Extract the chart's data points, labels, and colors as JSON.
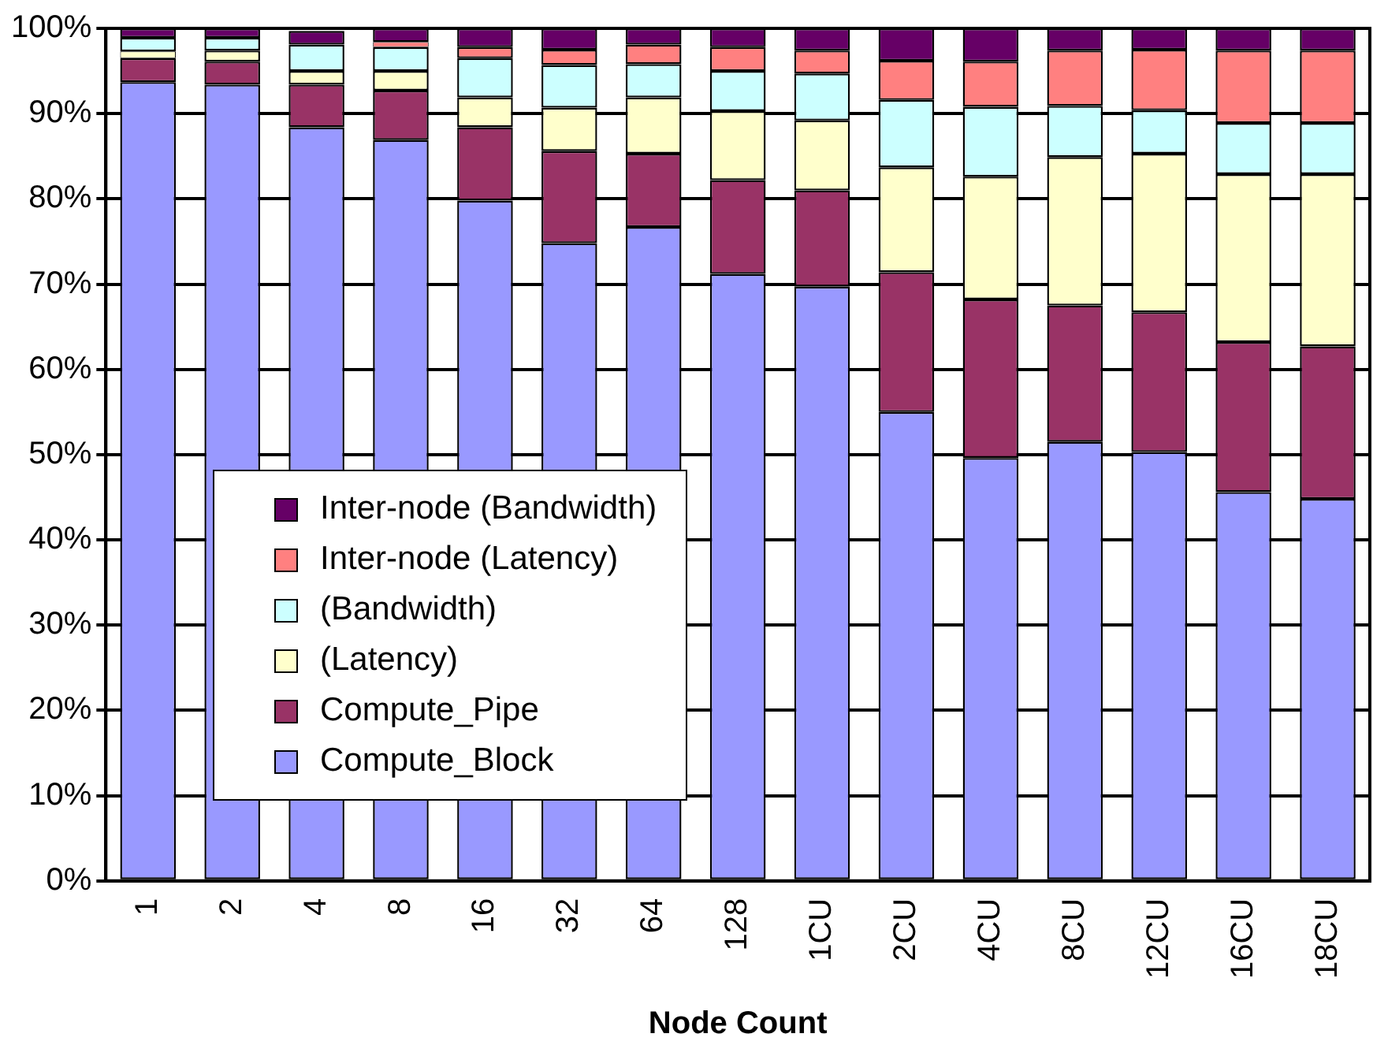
{
  "chart_data": {
    "type": "bar",
    "stacked": true,
    "xlabel": "Node Count",
    "categories": [
      "1",
      "2",
      "4",
      "8",
      "16",
      "32",
      "64",
      "128",
      "1CU",
      "2CU",
      "4CU",
      "8CU",
      "12CU",
      "16CU",
      "18CU"
    ],
    "series": [
      {
        "name": "Compute_Block",
        "color": "#9999ff",
        "values": [
          93.7,
          93.4,
          88.4,
          86.9,
          79.8,
          74.8,
          76.7,
          71.2,
          69.7,
          55.0,
          49.6,
          51.5,
          50.3,
          45.6,
          44.8
        ]
      },
      {
        "name": "Compute_Pipe",
        "color": "#993366",
        "values": [
          2.8,
          2.7,
          5.0,
          5.8,
          8.6,
          10.8,
          8.6,
          11.0,
          11.3,
          16.4,
          18.6,
          16.0,
          16.4,
          17.6,
          17.9
        ]
      },
      {
        "name": "(Latency)",
        "color": "#ffffcc",
        "values": [
          0.8,
          1.3,
          1.6,
          2.3,
          3.5,
          5.1,
          6.6,
          8.1,
          8.2,
          12.3,
          14.4,
          17.4,
          18.6,
          19.7,
          20.2
        ]
      },
      {
        "name": "(Bandwidth)",
        "color": "#ccffff",
        "values": [
          1.6,
          1.5,
          3.1,
          2.8,
          4.6,
          5.0,
          3.9,
          4.7,
          5.5,
          7.9,
          8.2,
          6.0,
          5.1,
          6.0,
          6.0
        ]
      },
      {
        "name": "Inter-node (Latency)",
        "color": "#ff8080",
        "values": [
          0,
          0,
          0,
          0.6,
          1.3,
          1.8,
          2.3,
          2.8,
          2.7,
          4.6,
          5.3,
          6.5,
          7.1,
          8.5,
          8.5
        ]
      },
      {
        "name": "Inter-node (Bandwidth)",
        "color": "#660066",
        "values": [
          1.1,
          1.1,
          1.6,
          1.6,
          2.2,
          2.5,
          1.9,
          2.2,
          2.6,
          3.8,
          3.9,
          2.6,
          2.5,
          2.6,
          2.6
        ]
      }
    ],
    "ylim": [
      0,
      100
    ],
    "yticks": [
      {
        "value": 0,
        "label": "0%"
      },
      {
        "value": 10,
        "label": "10%"
      },
      {
        "value": 20,
        "label": "20%"
      },
      {
        "value": 30,
        "label": "30%"
      },
      {
        "value": 40,
        "label": "40%"
      },
      {
        "value": 50,
        "label": "50%"
      },
      {
        "value": 60,
        "label": "60%"
      },
      {
        "value": 70,
        "label": "70%"
      },
      {
        "value": 80,
        "label": "80%"
      },
      {
        "value": 90,
        "label": "90%"
      },
      {
        "value": 100,
        "label": "100%"
      }
    ],
    "grid": "y",
    "legend": "bottom left"
  }
}
